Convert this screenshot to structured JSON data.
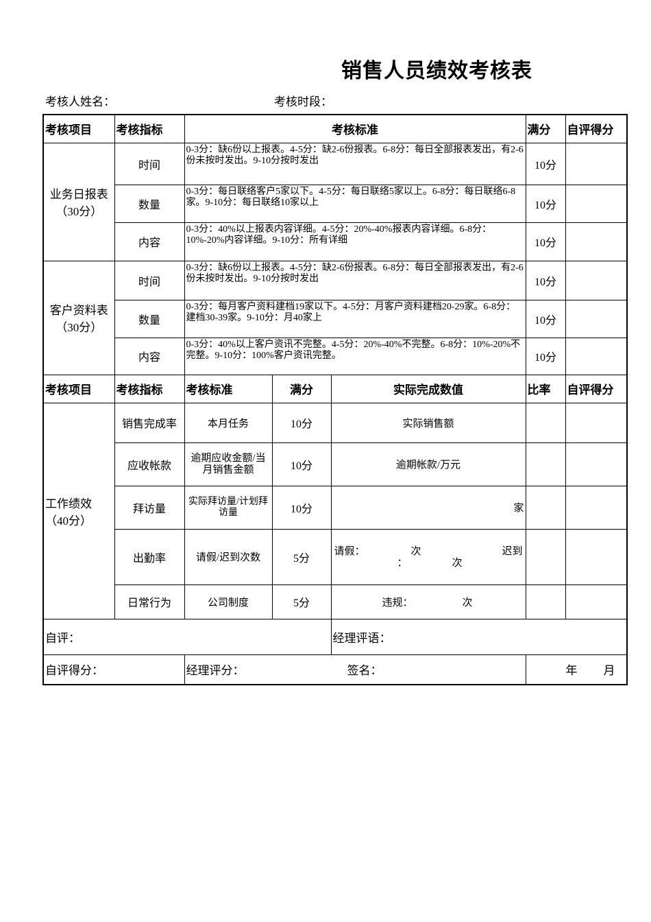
{
  "title": "销售人员绩效考核表",
  "meta": {
    "name_label": "考核人姓名：",
    "period_label": "考核时段："
  },
  "header1": {
    "item": "考核项目",
    "indicator": "考核指标",
    "standard": "考核标准",
    "full": "满分",
    "self": "自评得分"
  },
  "groups": [
    {
      "name": "业务日报表（30分）",
      "rows": [
        {
          "indicator": "时间",
          "standard": "0-3分：缺6份以上报表。4-5分：缺2-6份报表。6-8分：每日全部报表发出，有2-6份未按时发出。9-10分按时发出",
          "full": "10分"
        },
        {
          "indicator": "数量",
          "standard": "0-3分：每日联络客户5家以下。4-5分：每日联络5家以上。6-8分：每日联络6-8家。9-10分：每日联络10家以上",
          "full": "10分"
        },
        {
          "indicator": "内容",
          "standard": "0-3分：40%以上报表内容详细。4-5分：20%-40%报表内容详细。6-8分：10%-20%内容详细。9-10分：所有详细",
          "full": "10分"
        }
      ]
    },
    {
      "name": "客户资料表（30分）",
      "rows": [
        {
          "indicator": "时间",
          "standard": "0-3分：缺6份以上报表。4-5分：缺2-6份报表。6-8分：每日全部报表发出，有2-6份未按时发出。9-10分按时发出",
          "full": "10分"
        },
        {
          "indicator": "数量",
          "standard": "0-3分：每月客户资料建档19家以下。4-5分：月客户资料建档20-29家。6-8分：建档30-39家。9-10分：月40家上",
          "full": "10分"
        },
        {
          "indicator": "内容",
          "standard": "0-3分：40%以上客户资讯不完整。4-5分：20%-40%不完整。6-8分：10%-20%不完整。9-10分：100%客户资讯完整。",
          "full": "10分"
        }
      ]
    }
  ],
  "header2": {
    "item": "考核项目",
    "indicator": "考核指标",
    "standard": "考核标准",
    "full": "满分",
    "actual": "实际完成数值",
    "ratio": "比率",
    "self": "自评得分"
  },
  "performance": {
    "name": "工作绩效（40分）",
    "rows": [
      {
        "indicator": "销售完成率",
        "standard": "本月任务",
        "full": "10分",
        "actual": "实际销售额"
      },
      {
        "indicator": "应收帐款",
        "standard": "逾期应收金额/当月销售金额",
        "full": "10分",
        "actual": "逾期帐款/万元"
      },
      {
        "indicator": "拜访量",
        "standard": "实际拜访量/计划拜访量",
        "full": "10分",
        "actual": "家"
      },
      {
        "indicator": "出勤率",
        "standard": "请假/迟到次数",
        "full": "5分",
        "actual_leave": "请假：",
        "actual_times": "次",
        "actual_late": "迟到",
        "actual_colon": "：",
        "actual_times2": "次"
      },
      {
        "indicator": "日常行为",
        "standard": "公司制度",
        "full": "5分",
        "actual": "违规：",
        "actual_times": "次"
      }
    ]
  },
  "footer": {
    "self_eval": "自评：",
    "manager_comment": "经理评语：",
    "self_score": "自评得分：",
    "manager_score": "经理评分：",
    "signature": "签名：",
    "year": "年",
    "month": "月"
  }
}
